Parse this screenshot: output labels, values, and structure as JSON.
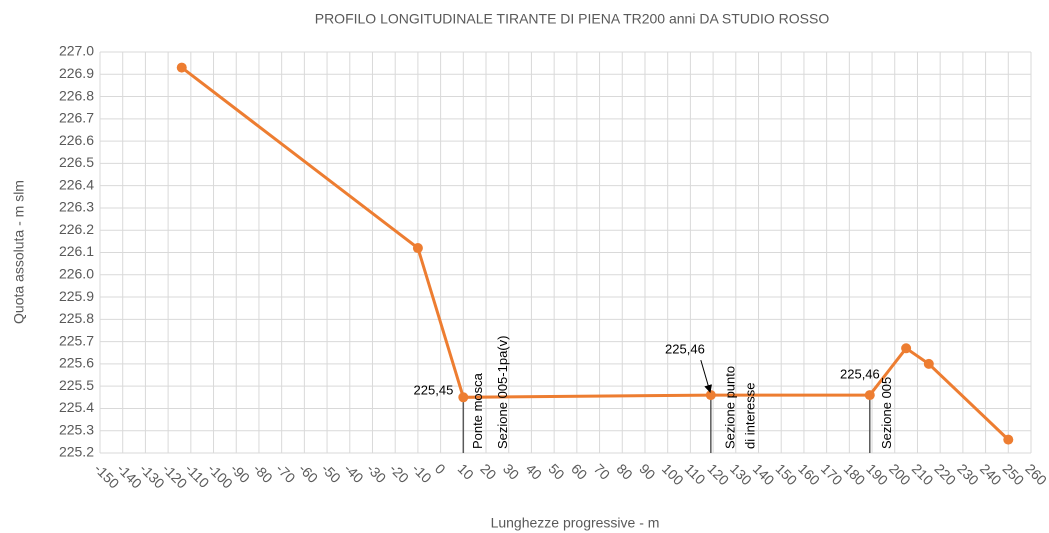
{
  "chart_data": {
    "type": "line",
    "title": "PROFILO LONGITUDINALE TIRANTE DI PIENA TR200 anni DA STUDIO ROSSO",
    "x_label": "Lunghezze progressive - m",
    "y_label": "Quota assoluta - m slm",
    "x": [
      -114,
      -10,
      10,
      119,
      189,
      205,
      215,
      250
    ],
    "values": [
      226.93,
      226.12,
      225.45,
      225.46,
      225.46,
      225.67,
      225.6,
      225.26
    ],
    "color": "#ed7d31",
    "xlim": [
      -150,
      260
    ],
    "xticks": [
      -150,
      -140,
      -130,
      -120,
      -110,
      -100,
      -90,
      -80,
      -70,
      -60,
      -50,
      -40,
      -30,
      -20,
      -10,
      0,
      10,
      20,
      30,
      40,
      50,
      60,
      70,
      80,
      90,
      100,
      110,
      120,
      130,
      140,
      150,
      160,
      170,
      180,
      190,
      200,
      210,
      220,
      230,
      240,
      250,
      260
    ],
    "ylim": [
      225.2,
      227.0
    ],
    "yticks": [
      225.2,
      225.3,
      225.4,
      225.5,
      225.6,
      225.7,
      225.8,
      225.9,
      {
        "value": 226,
        "label": "226.0"
      },
      226.1,
      226.2,
      226.3,
      226.4,
      226.5,
      226.6,
      226.7,
      226.8,
      226.9,
      {
        "value": 227,
        "label": "227.0"
      }
    ],
    "grid": true,
    "annotations": [
      "225,45",
      "Ponte mosca",
      "Sezione 005-1pa(v)",
      "225,46",
      "Sezione   punto",
      "di interesse",
      "225,46",
      "Sezione 005"
    ]
  }
}
